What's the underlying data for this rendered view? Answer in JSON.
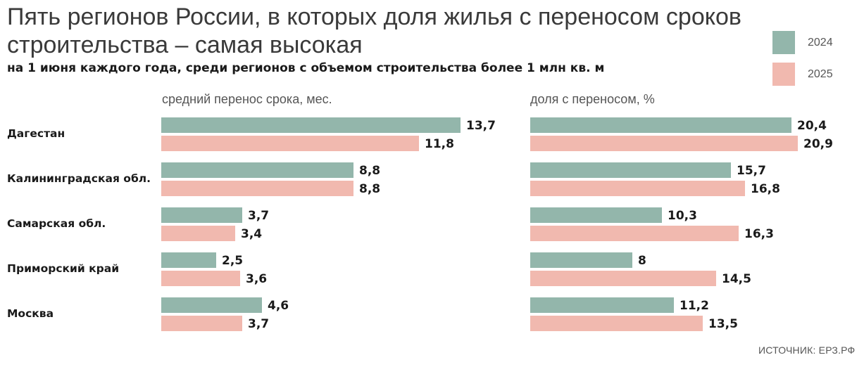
{
  "title": "Пять регионов России, в которых доля жилья с переносом сроков строительства – самая высокая",
  "subtitle": "на 1 июня каждого года, среди регионов с объемом строительства более 1 млн кв. м",
  "legend": [
    {
      "label": "2024",
      "color": "#93b6ab"
    },
    {
      "label": "2025",
      "color": "#f1b9af"
    }
  ],
  "source": "ИСТОЧНИК: ЕРЗ.РФ",
  "chart_data": [
    {
      "type": "bar",
      "orientation": "horizontal",
      "title": "средний перенос срока, мес.",
      "categories": [
        "Дагестан",
        "Калининградская обл.",
        "Самарская обл.",
        "Приморский край",
        "Москва"
      ],
      "series": [
        {
          "name": "2024",
          "values": [
            13.7,
            8.8,
            3.7,
            2.5,
            4.6
          ],
          "labels": [
            "13,7",
            "8,8",
            "3,7",
            "2,5",
            "4,6"
          ]
        },
        {
          "name": "2025",
          "values": [
            11.8,
            8.8,
            3.4,
            3.6,
            3.7
          ],
          "labels": [
            "11,8",
            "8,8",
            "3,4",
            "3,6",
            "3,7"
          ]
        }
      ],
      "xlim": [
        0,
        13.7
      ]
    },
    {
      "type": "bar",
      "orientation": "horizontal",
      "title": "доля с переносом, %",
      "categories": [
        "Дагестан",
        "Калининградская обл.",
        "Самарская обл.",
        "Приморский край",
        "Москва"
      ],
      "series": [
        {
          "name": "2024",
          "values": [
            20.4,
            15.7,
            10.3,
            8,
            11.2
          ],
          "labels": [
            "20,4",
            "15,7",
            "10,3",
            "8",
            "11,2"
          ]
        },
        {
          "name": "2025",
          "values": [
            20.9,
            16.8,
            16.3,
            14.5,
            13.5
          ],
          "labels": [
            "20,9",
            "16,8",
            "16,3",
            "14,5",
            "13,5"
          ]
        }
      ],
      "xlim": [
        0,
        20.9
      ]
    }
  ]
}
